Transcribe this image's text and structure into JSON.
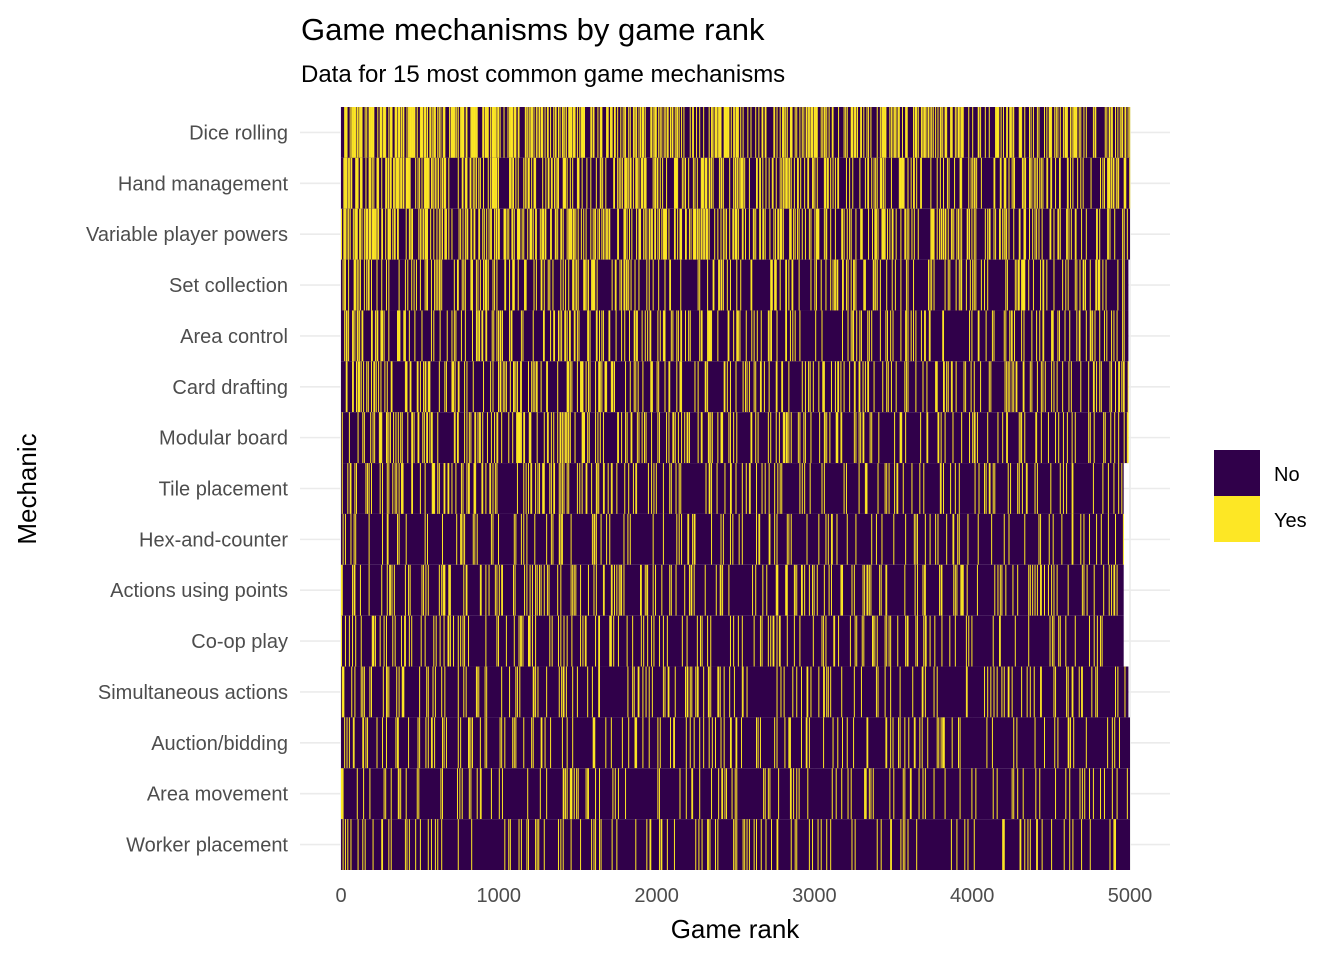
{
  "chart_data": {
    "type": "heatmap",
    "title": "Game mechanisms by game rank",
    "subtitle": "Data for 15 most common game mechanisms",
    "xlabel": "Game rank",
    "ylabel": "Mechanic",
    "xlim": [
      0,
      5000
    ],
    "x_ticks": [
      0,
      1000,
      2000,
      3000,
      4000,
      5000
    ],
    "x_tick_labels": [
      "0",
      "1000",
      "2000",
      "3000",
      "4000",
      "5000"
    ],
    "categories": [
      "Dice rolling",
      "Hand management",
      "Variable player powers",
      "Set collection",
      "Area control",
      "Card drafting",
      "Modular board",
      "Tile placement",
      "Hex-and-counter",
      "Actions using points",
      "Co-op play",
      "Simultaneous actions",
      "Auction/bidding",
      "Area movement",
      "Worker placement"
    ],
    "row_yes_density": [
      0.52,
      0.45,
      0.4,
      0.3,
      0.27,
      0.25,
      0.23,
      0.21,
      0.15,
      0.19,
      0.17,
      0.16,
      0.15,
      0.15,
      0.15
    ],
    "row_rank_range": [
      [
        1,
        5000
      ],
      [
        1,
        5000
      ],
      [
        1,
        5000
      ],
      [
        1,
        4990
      ],
      [
        1,
        4990
      ],
      [
        1,
        4990
      ],
      [
        1,
        4990
      ],
      [
        1,
        4960
      ],
      [
        1,
        4960
      ],
      [
        1,
        4960
      ],
      [
        1,
        4960
      ],
      [
        1,
        4990
      ],
      [
        1,
        5000
      ],
      [
        1,
        5000
      ],
      [
        1,
        5000
      ]
    ],
    "legend": {
      "position": "right",
      "items": [
        {
          "label": "No",
          "color": "#30004a"
        },
        {
          "label": "Yes",
          "color": "#fde725"
        }
      ]
    },
    "grid": true
  }
}
